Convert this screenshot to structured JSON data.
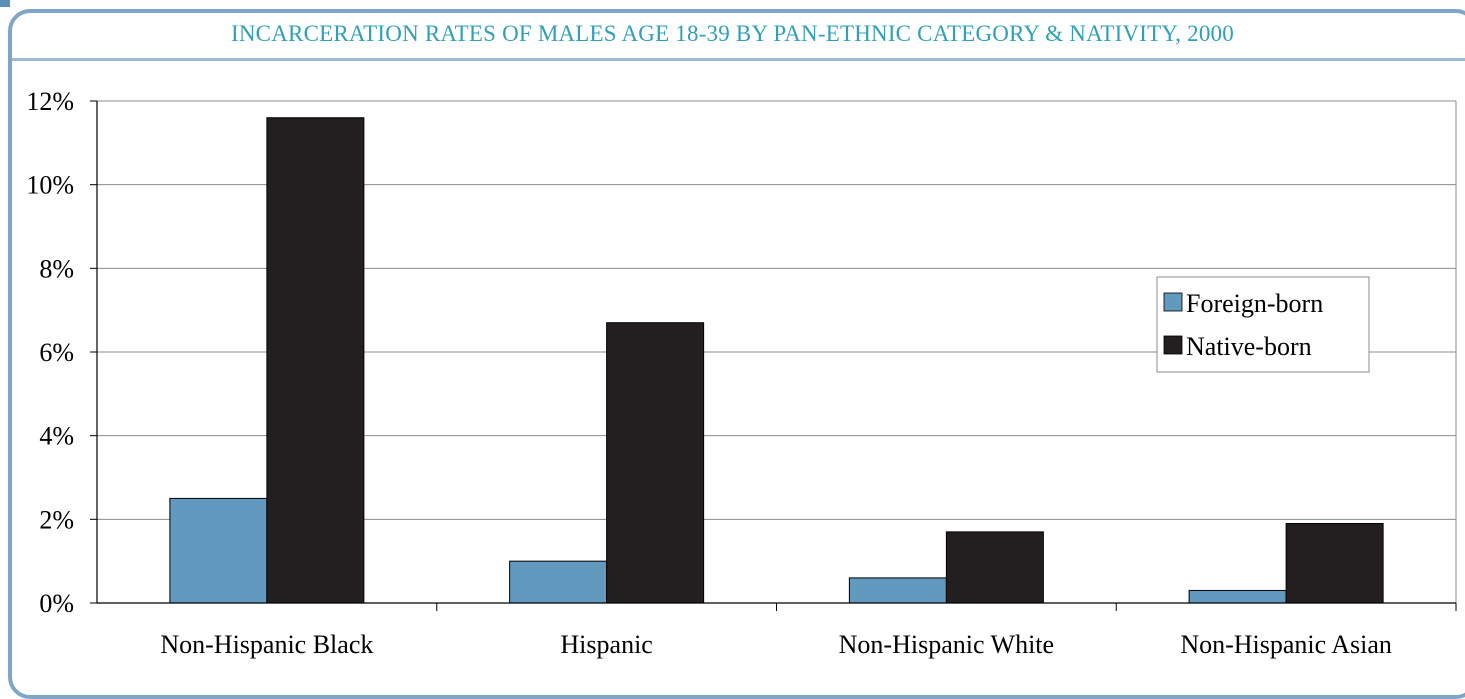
{
  "title": "INCARCERATION RATES OF MALES AGE 18-39 BY PAN-ETHNIC CATEGORY & NATIVITY, 2000",
  "colors": {
    "foreign_born": "#6199bf",
    "native_born": "#231f20",
    "frame": "#7fa6c6",
    "title": "#2f9fba",
    "gridline": "#8c8c8c"
  },
  "chart_data": {
    "type": "bar",
    "title": "INCARCERATION RATES OF MALES AGE 18-39 BY PAN-ETHNIC CATEGORY & NATIVITY, 2000",
    "xlabel": "",
    "ylabel": "",
    "categories": [
      "Non-Hispanic Black",
      "Hispanic",
      "Non-Hispanic White",
      "Non-Hispanic Asian"
    ],
    "series": [
      {
        "name": "Foreign-born",
        "values": [
          2.5,
          1.0,
          0.6,
          0.3
        ]
      },
      {
        "name": "Native-born",
        "values": [
          11.6,
          6.7,
          1.7,
          1.9
        ]
      }
    ],
    "ylim": [
      0,
      12
    ],
    "yticks": [
      0,
      2,
      4,
      6,
      8,
      10,
      12
    ],
    "ytick_labels": [
      "0%",
      "2%",
      "4%",
      "6%",
      "8%",
      "10%",
      "12%"
    ],
    "grid": true,
    "legend_position": "right"
  }
}
